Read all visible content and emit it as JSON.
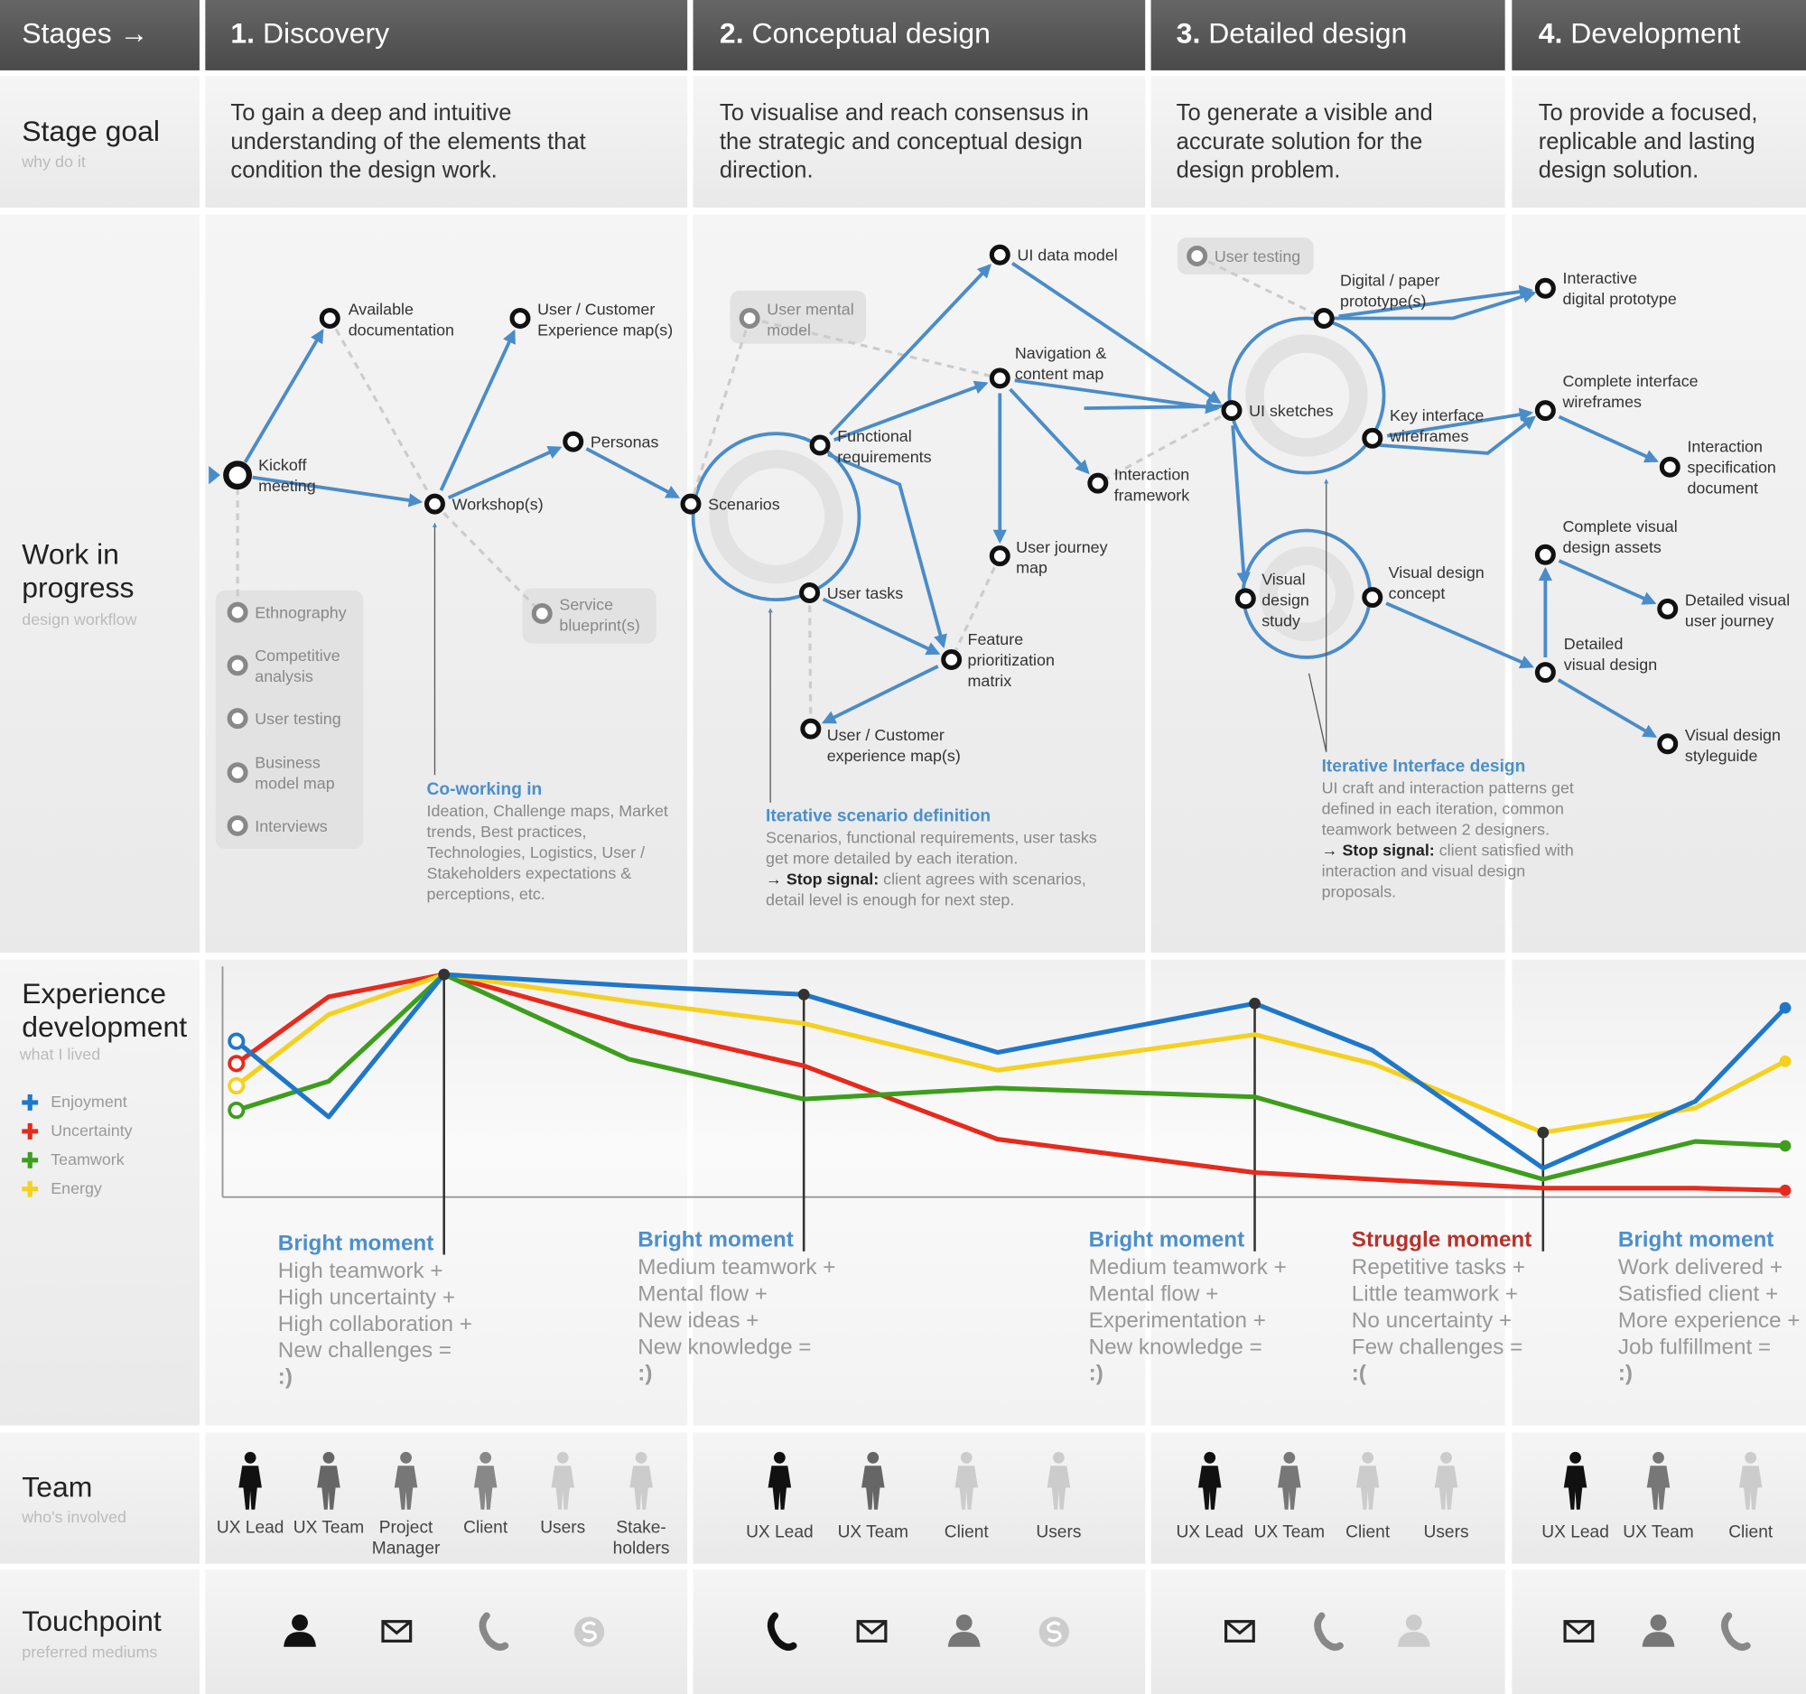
{
  "stages": {
    "header": "Stages →",
    "items": [
      {
        "number": "1.",
        "name": "Discovery"
      },
      {
        "number": "2.",
        "name": "Conceptual design"
      },
      {
        "number": "3.",
        "name": "Detailed design"
      },
      {
        "number": "4.",
        "name": "Development"
      }
    ]
  },
  "stage_goal": {
    "title": "Stage goal",
    "subtitle": "why do it",
    "texts": [
      "To gain a deep and intuitive understanding of the elements that condition the design work.",
      "To visualise and reach consensus in the strategic and conceptual design direction.",
      "To generate a visible and accurate solution for the design problem.",
      "To provide a focused, replicable and lasting design solution."
    ]
  },
  "work_in_progress": {
    "title": "Work in progress",
    "subtitle": "design workflow",
    "nodes": [
      {
        "label": [
          "Kickoff",
          "meeting"
        ]
      },
      {
        "label": [
          "Available",
          "documentation"
        ]
      },
      {
        "label": [
          "User / Customer",
          "Experience map(s)"
        ]
      },
      {
        "label": [
          "Personas"
        ]
      },
      {
        "label": [
          "Workshop(s)"
        ]
      },
      {
        "label": [
          "Service",
          "blueprint(s)"
        ]
      },
      {
        "label": [
          "Ethnography"
        ]
      },
      {
        "label": [
          "Competitive",
          "analysis"
        ]
      },
      {
        "label": [
          "User testing"
        ]
      },
      {
        "label": [
          "Business",
          "model map"
        ]
      },
      {
        "label": [
          "Interviews"
        ]
      },
      {
        "label": [
          "Scenarios"
        ]
      },
      {
        "label": [
          "User mental",
          "model"
        ]
      },
      {
        "label": [
          "UI data model"
        ]
      },
      {
        "label": [
          "Navigation &",
          "content map"
        ]
      },
      {
        "label": [
          "Functional",
          "requirements"
        ]
      },
      {
        "label": [
          "Interaction",
          "framework"
        ]
      },
      {
        "label": [
          "User journey",
          "map"
        ]
      },
      {
        "label": [
          "User tasks"
        ]
      },
      {
        "label": [
          "Feature",
          "prioritization",
          "matrix"
        ]
      },
      {
        "label": [
          "User / Customer",
          "experience map(s)"
        ]
      },
      {
        "label": [
          "User testing"
        ]
      },
      {
        "label": [
          "Digital / paper",
          "prototype(s)"
        ]
      },
      {
        "label": [
          "UI sketches"
        ]
      },
      {
        "label": [
          "Key interface",
          "wireframes"
        ]
      },
      {
        "label": [
          "Visual",
          "design",
          "study"
        ]
      },
      {
        "label": [
          "Visual design",
          "concept"
        ]
      },
      {
        "label": [
          "Interactive",
          "digital prototype"
        ]
      },
      {
        "label": [
          "Complete interface",
          "wireframes"
        ]
      },
      {
        "label": [
          "Interaction",
          "specification",
          "document"
        ]
      },
      {
        "label": [
          "Complete visual",
          "design assets"
        ]
      },
      {
        "label": [
          "Detailed visual",
          "user journey"
        ]
      },
      {
        "label": [
          "Detailed",
          "visual design"
        ]
      },
      {
        "label": [
          "Visual design",
          "styleguide"
        ]
      }
    ],
    "notes": [
      {
        "title": "Co-working in",
        "text": "Ideation, Challenge maps, Market trends, Best practices, Technologies, Logistics, User / Stakeholders expectations & perceptions, etc."
      },
      {
        "title": "Iterative scenario definition",
        "text": "Scenarios, functional requirements, user tasks get more detailed by each iteration.",
        "stop_label": "→ Stop signal:",
        "stop_text": "client agrees with scenarios, detail level is enough for next step."
      },
      {
        "title": "Iterative Interface design",
        "text": "UI craft and interaction patterns get defined in each iteration, common teamwork between 2 designers.",
        "stop_label": "→ Stop signal:",
        "stop_text": "client satisfied with interaction and visual design proposals."
      }
    ]
  },
  "experience": {
    "title": "Experience development",
    "subtitle": "what I lived",
    "series": [
      {
        "name": "Enjoyment",
        "color": "#1f77c9",
        "values": [
          70,
          36,
          100,
          95,
          91,
          65,
          87,
          66,
          13,
          43,
          85
        ]
      },
      {
        "name": "Uncertainty",
        "color": "#e8291c",
        "values": [
          60,
          90,
          100,
          77,
          59,
          26,
          11,
          8,
          4,
          4,
          3
        ]
      },
      {
        "name": "Teamwork",
        "color": "#3c9e1c",
        "values": [
          39,
          52,
          100,
          62,
          44,
          49,
          45,
          30,
          8,
          25,
          23
        ]
      },
      {
        "name": "Energy",
        "color": "#f5d11f",
        "values": [
          50,
          82,
          100,
          88,
          78,
          57,
          73,
          60,
          29,
          40,
          61
        ]
      }
    ],
    "moments": [
      {
        "title": "Bright moment",
        "color": "#4b8fcb",
        "lines": [
          "High teamwork +",
          "High uncertainty +",
          "High collaboration +",
          "New challenges =",
          ":)"
        ]
      },
      {
        "title": "Bright moment",
        "color": "#4b8fcb",
        "lines": [
          "Medium teamwork +",
          "Mental flow +",
          "New ideas +",
          "New knowledge =",
          ":)"
        ]
      },
      {
        "title": "Bright moment",
        "color": "#4b8fcb",
        "lines": [
          "Medium teamwork +",
          "Mental flow +",
          "Experimentation +",
          "New knowledge =",
          ":)"
        ]
      },
      {
        "title": "Struggle moment",
        "color": "#b8312a",
        "lines": [
          "Repetitive tasks +",
          "Little teamwork +",
          "No uncertainty +",
          "Few challenges =",
          ":("
        ]
      },
      {
        "title": "Bright moment",
        "color": "#4b8fcb",
        "lines": [
          "Work delivered +",
          "Satisfied client +",
          "More experience +",
          "Job fulfillment =",
          ":)"
        ]
      }
    ]
  },
  "team": {
    "title": "Team",
    "subtitle": "who's involved",
    "groups": [
      [
        {
          "label": "UX Lead",
          "color": "#111111"
        },
        {
          "label": "UX Team",
          "color": "#666666"
        },
        {
          "label": "Project Manager",
          "color": "#777777"
        },
        {
          "label": "Client",
          "color": "#888888"
        },
        {
          "label": "Users",
          "color": "#cccccc"
        },
        {
          "label": "Stake-holders",
          "color": "#cccccc"
        }
      ],
      [
        {
          "label": "UX Lead",
          "color": "#111111"
        },
        {
          "label": "UX Team",
          "color": "#666666"
        },
        {
          "label": "Client",
          "color": "#cccccc"
        },
        {
          "label": "Users",
          "color": "#cccccc"
        }
      ],
      [
        {
          "label": "UX Lead",
          "color": "#111111"
        },
        {
          "label": "UX Team",
          "color": "#777777"
        },
        {
          "label": "Client",
          "color": "#cccccc"
        },
        {
          "label": "Users",
          "color": "#cccccc"
        }
      ],
      [
        {
          "label": "UX Lead",
          "color": "#111111"
        },
        {
          "label": "UX Team",
          "color": "#777777"
        },
        {
          "label": "Client",
          "color": "#cccccc"
        }
      ]
    ]
  },
  "touchpoint": {
    "title": "Touchpoint",
    "subtitle": "preferred mediums"
  }
}
